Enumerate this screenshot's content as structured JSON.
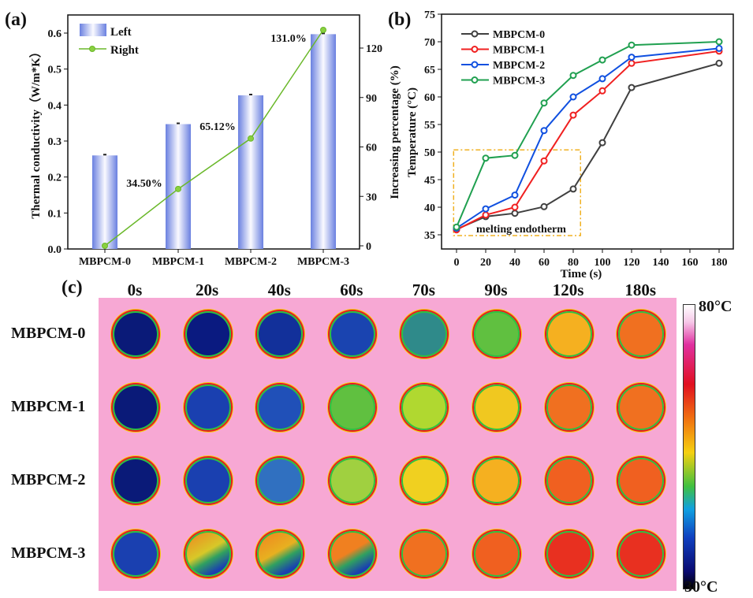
{
  "chart_data": [
    {
      "type": "bar",
      "panel_label": "(a)",
      "categories": [
        "MBPCM-0",
        "MBPCM-1",
        "MBPCM-2",
        "MBPCM-3"
      ],
      "series": [
        {
          "name": "Left",
          "type": "bar",
          "axis": "left",
          "values": [
            0.26,
            0.347,
            0.427,
            0.597
          ],
          "color": "#6a80e0"
        },
        {
          "name": "Right",
          "type": "line",
          "axis": "right",
          "values": [
            0,
            34.5,
            65.12,
            131.0
          ],
          "color": "#6ab82a"
        }
      ],
      "annotations": [
        "34.50%",
        "65.12%",
        "131.0%"
      ],
      "ylabel": "Thermal conductivity（W/m*K）",
      "ylabel_right": "Increasing percentage (%)",
      "ylim": [
        0,
        0.6
      ],
      "yticks": [
        "0.0",
        "0.1",
        "0.2",
        "0.3",
        "0.4",
        "0.5",
        "0.6"
      ],
      "ylim_right": [
        0,
        120
      ],
      "yticks_right": [
        "0",
        "30",
        "60",
        "90",
        "120"
      ],
      "legend": "top-left",
      "grid": false
    },
    {
      "type": "line",
      "panel_label": "(b)",
      "x": [
        0,
        20,
        40,
        60,
        80,
        100,
        120,
        180
      ],
      "series": [
        {
          "name": "MBPCM-0",
          "values": [
            36.0,
            38.3,
            38.9,
            40.1,
            43.3,
            51.7,
            61.7,
            66.1
          ],
          "color": "#404040"
        },
        {
          "name": "MBPCM-1",
          "values": [
            35.9,
            38.6,
            40.0,
            48.4,
            56.7,
            61.1,
            66.1,
            68.3
          ],
          "color": "#f02020"
        },
        {
          "name": "MBPCM-2",
          "values": [
            36.2,
            39.7,
            42.2,
            53.9,
            60.0,
            63.3,
            67.2,
            68.8
          ],
          "color": "#1050e0"
        },
        {
          "name": "MBPCM-3",
          "values": [
            36.4,
            48.9,
            49.4,
            58.9,
            63.9,
            66.7,
            69.4,
            70.0
          ],
          "color": "#20a050"
        }
      ],
      "xlabel": "Time (s)",
      "ylabel": "Temperature (°C)",
      "xlim": [
        -5,
        190
      ],
      "ylim": [
        35,
        75
      ],
      "xticks": [
        "0",
        "20",
        "40",
        "60",
        "80",
        "100",
        "120",
        "140",
        "160",
        "180"
      ],
      "yticks": [
        "35",
        "40",
        "45",
        "50",
        "55",
        "60",
        "65",
        "70",
        "75"
      ],
      "annotation": {
        "text": "melting endotherm",
        "x_range": [
          -2,
          85
        ],
        "y_range": [
          35,
          50.4
        ],
        "color": "#f0b020"
      },
      "legend": "top-left",
      "grid": false
    }
  ],
  "thermal": {
    "panel_label": "(c)",
    "times": [
      "0s",
      "20s",
      "40s",
      "60s",
      "70s",
      "90s",
      "120s",
      "180s"
    ],
    "samples": [
      "MBPCM-0",
      "MBPCM-1",
      "MBPCM-2",
      "MBPCM-3"
    ],
    "colors": [
      [
        "#0a1a78",
        "#0a1a80",
        "#12309a",
        "#1a44b0",
        "#2f8a8a",
        "#60c040",
        "#f5b020",
        "#f07020"
      ],
      [
        "#0a1a78",
        "#1a40b0",
        "#2050b8",
        "#60c040",
        "#b0d830",
        "#f0c820",
        "#f07020",
        "#f07020"
      ],
      [
        "#0a1a78",
        "#1a40b0",
        "#3070c0",
        "#a0d040",
        "#f0d020",
        "#f5b020",
        "#f06020",
        "#f06020"
      ],
      [
        "#1a40b0",
        "#d8c828",
        "#e8b020",
        "#f08020",
        "#f07020",
        "#f06020",
        "#e83020",
        "#e83020"
      ]
    ],
    "scale_max": "80°C",
    "scale_min": "30°C"
  }
}
